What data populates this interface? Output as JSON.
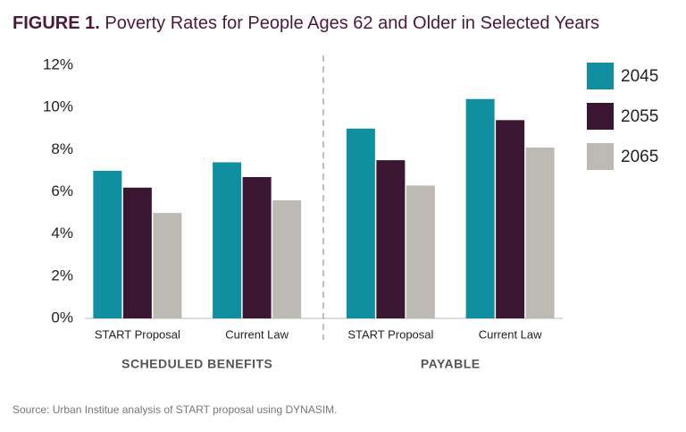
{
  "chart_data": {
    "type": "bar",
    "title_prefix": "FIGURE 1.",
    "title": "Poverty Rates for People Ages 62 and Older in Selected Years",
    "categories": [
      "START Proposal",
      "Current Law",
      "START Proposal",
      "Current Law"
    ],
    "group_labels": [
      "SCHEDULED BENEFITS",
      "PAYABLE"
    ],
    "series": [
      {
        "name": "2045",
        "color": "#0f8f9f",
        "values": [
          7.0,
          7.4,
          9.0,
          10.4
        ]
      },
      {
        "name": "2055",
        "color": "#3b1632",
        "values": [
          6.2,
          6.7,
          7.5,
          9.4
        ]
      },
      {
        "name": "2065",
        "color": "#bdb9b3",
        "values": [
          5.0,
          5.6,
          6.3,
          8.1
        ]
      }
    ],
    "ylim": [
      0,
      12
    ],
    "yticks": [
      {
        "value": 0,
        "label": "0%"
      },
      {
        "value": 2,
        "label": "2%"
      },
      {
        "value": 4,
        "label": "4%"
      },
      {
        "value": 6,
        "label": "6%"
      },
      {
        "value": 8,
        "label": "8%"
      },
      {
        "value": 10,
        "label": "10%"
      },
      {
        "value": 12,
        "label": "12%"
      }
    ],
    "grid": false,
    "legend": "right",
    "source": "Source: Urban Institue analysis of START proposal using DYNASIM."
  }
}
